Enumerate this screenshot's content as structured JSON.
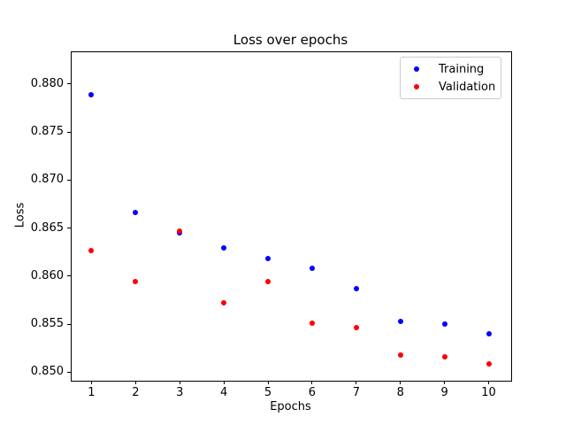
{
  "chart_data": {
    "type": "scatter",
    "title": "Loss over epochs",
    "xlabel": "Epochs",
    "ylabel": "Loss",
    "x": [
      1,
      2,
      3,
      4,
      5,
      6,
      7,
      8,
      9,
      10
    ],
    "series": [
      {
        "name": "Training",
        "color": "#0000ff",
        "values": [
          0.8789,
          0.8666,
          0.8645,
          0.8629,
          0.8618,
          0.8608,
          0.8587,
          0.8553,
          0.855,
          0.854
        ]
      },
      {
        "name": "Validation",
        "color": "#ff0000",
        "values": [
          0.8627,
          0.8594,
          0.8647,
          0.8572,
          0.8594,
          0.8551,
          0.8546,
          0.8518,
          0.8516,
          0.8509
        ]
      }
    ],
    "xticks": [
      1,
      2,
      3,
      4,
      5,
      6,
      7,
      8,
      9,
      10
    ],
    "yticks": [
      0.85,
      0.855,
      0.86,
      0.865,
      0.87,
      0.875,
      0.88
    ],
    "xlim": [
      0.53,
      10.49
    ],
    "ylim": [
      0.8492,
      0.8834
    ],
    "grid": false,
    "legend_position": "upper right",
    "marker_size_px": 6,
    "background_color": "#ffffff"
  }
}
